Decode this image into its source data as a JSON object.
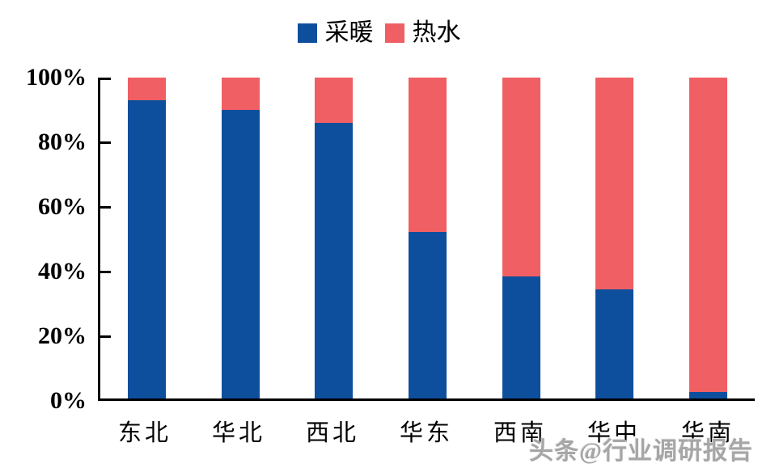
{
  "chart_data": {
    "type": "bar",
    "subtype": "stacked-100-percent",
    "categories": [
      "东北",
      "华北",
      "西北",
      "华东",
      "西南",
      "华中",
      "华南"
    ],
    "series": [
      {
        "name": "采暖",
        "color": "#0e4f9d",
        "values": [
          93,
          90,
          86,
          52,
          38,
          34,
          2
        ]
      },
      {
        "name": "热水",
        "color": "#ef5f63",
        "values": [
          7,
          10,
          14,
          48,
          62,
          66,
          98
        ]
      }
    ],
    "title": "",
    "xlabel": "",
    "ylabel": "",
    "yticks": [
      "0%",
      "20%",
      "40%",
      "60%",
      "80%",
      "100%"
    ],
    "ylim": [
      0,
      100
    ],
    "legend_position": "top-center",
    "grid": false,
    "axis_color": "#000000"
  },
  "watermark": "头条@行业调研报告"
}
